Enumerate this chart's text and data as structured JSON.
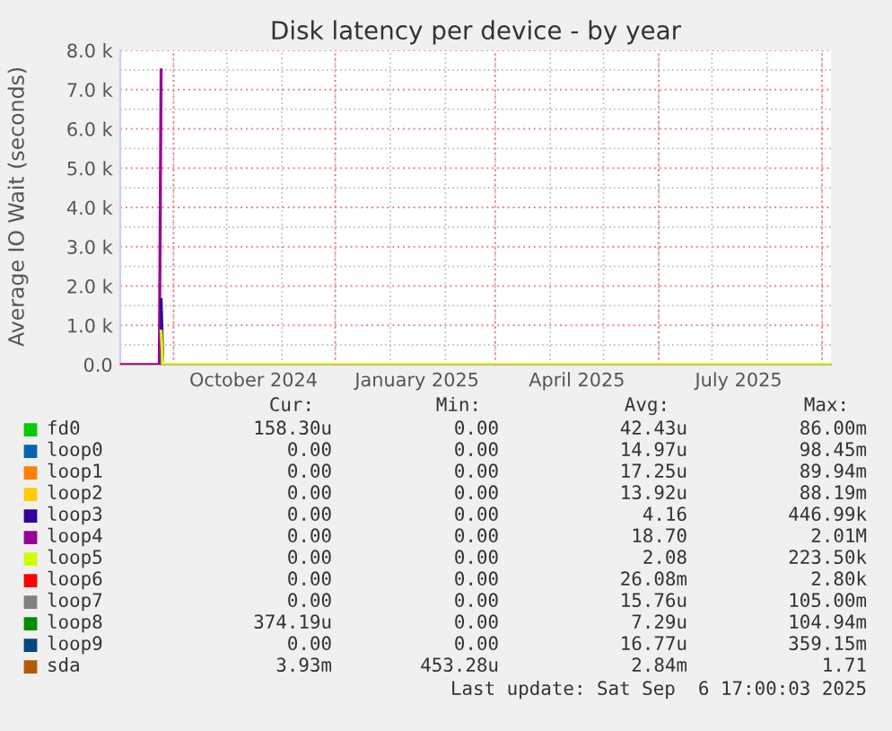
{
  "chart_data": {
    "type": "line",
    "title": "Disk latency per device - by year",
    "ylabel": "Average IO Wait (seconds)",
    "xlim": [
      "2024-08-02",
      "2025-09-06"
    ],
    "xticks": [
      {
        "value": "2024-09-01",
        "label": null
      },
      {
        "value": "2024-10-16",
        "label": "October 2024"
      },
      {
        "value": "2024-12-01",
        "label": null
      },
      {
        "value": "2025-01-16",
        "label": "January 2025"
      },
      {
        "value": "2025-03-01",
        "label": null
      },
      {
        "value": "2025-04-16",
        "label": "April 2025"
      },
      {
        "value": "2025-06-01",
        "label": null
      },
      {
        "value": "2025-07-16",
        "label": "July 2025"
      },
      {
        "value": "2025-09-01",
        "label": null
      }
    ],
    "ylim": [
      0,
      8000
    ],
    "yticks": [
      {
        "value": 0,
        "label": "0.0"
      },
      {
        "value": 1000,
        "label": "1.0 k"
      },
      {
        "value": 2000,
        "label": "2.0 k"
      },
      {
        "value": 3000,
        "label": "3.0 k"
      },
      {
        "value": 4000,
        "label": "4.0 k"
      },
      {
        "value": 5000,
        "label": "5.0 k"
      },
      {
        "value": 6000,
        "label": "6.0 k"
      },
      {
        "value": 7000,
        "label": "7.0 k"
      },
      {
        "value": 8000,
        "label": "8.0 k"
      }
    ],
    "grid": true,
    "legend": "bottom",
    "x": [
      "2024-08-02",
      "2024-08-24",
      "2024-08-25",
      "2024-08-26",
      "2025-09-06"
    ],
    "series": [
      {
        "name": "fd0",
        "color": "#00cc00",
        "values": [
          null,
          null,
          null,
          null,
          null
        ]
      },
      {
        "name": "loop0",
        "color": "#0066b3",
        "values": [
          null,
          null,
          null,
          null,
          null
        ]
      },
      {
        "name": "loop1",
        "color": "#ff8000",
        "values": [
          null,
          null,
          null,
          null,
          null
        ]
      },
      {
        "name": "loop2",
        "color": "#ffcc00",
        "values": [
          null,
          null,
          null,
          null,
          null
        ]
      },
      {
        "name": "loop3",
        "color": "#330099",
        "values": [
          null,
          null,
          1650,
          0,
          null
        ]
      },
      {
        "name": "loop4",
        "color": "#990099",
        "values": [
          0,
          0,
          7500,
          null,
          null
        ]
      },
      {
        "name": "loop5",
        "color": "#ccff00",
        "values": [
          null,
          null,
          850,
          0,
          0
        ]
      },
      {
        "name": "loop6",
        "color": "#ff0000",
        "values": [
          null,
          null,
          null,
          null,
          null
        ]
      },
      {
        "name": "loop7",
        "color": "#808080",
        "values": [
          null,
          null,
          null,
          null,
          null
        ]
      },
      {
        "name": "loop8",
        "color": "#008f00",
        "values": [
          null,
          null,
          null,
          null,
          null
        ]
      },
      {
        "name": "loop9",
        "color": "#00487d",
        "values": [
          null,
          null,
          null,
          null,
          null
        ]
      },
      {
        "name": "sda",
        "color": "#b35a00",
        "values": [
          null,
          null,
          null,
          null,
          null
        ]
      }
    ],
    "annotations": [
      "Cur:",
      "Min:",
      "Avg:",
      "Max:",
      "158.30u",
      "0.00",
      "42.43u",
      "86.00m",
      "0.00",
      "0.00",
      "14.97u",
      "98.45m",
      "0.00",
      "0.00",
      "17.25u",
      "89.94m",
      "0.00",
      "0.00",
      "13.92u",
      "88.19m",
      "0.00",
      "0.00",
      "4.16",
      "446.99k",
      "0.00",
      "0.00",
      "18.70",
      "2.01M",
      "0.00",
      "0.00",
      "2.08",
      "223.50k",
      "0.00",
      "0.00",
      "26.08m",
      "2.80k",
      "0.00",
      "0.00",
      "15.76u",
      "105.00m",
      "374.19u",
      "0.00",
      "7.29u",
      "104.94m",
      "0.00",
      "0.00",
      "16.77u",
      "359.15m",
      "3.93m",
      "453.28u",
      "2.84m",
      "1.71",
      "Last update: Sat Sep  6 17:00:03 2025"
    ]
  }
}
